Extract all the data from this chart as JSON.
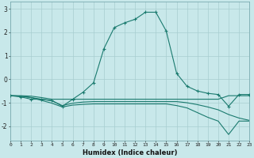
{
  "xlabel": "Humidex (Indice chaleur)",
  "background_color": "#c8e8ea",
  "grid_color": "#a8cdd0",
  "line_color": "#1a7a6e",
  "xlim": [
    0,
    23
  ],
  "ylim": [
    -2.6,
    3.3
  ],
  "xticks": [
    0,
    1,
    2,
    3,
    4,
    5,
    6,
    7,
    8,
    9,
    10,
    11,
    12,
    13,
    14,
    15,
    16,
    17,
    18,
    19,
    20,
    21,
    22,
    23
  ],
  "yticks": [
    -2,
    -1,
    0,
    1,
    2,
    3
  ],
  "line1_x": [
    0,
    1,
    2,
    3,
    4,
    5,
    6,
    7,
    8,
    9,
    10,
    11,
    12,
    13,
    14,
    15,
    16,
    17,
    18,
    19,
    20,
    21,
    22,
    23
  ],
  "line1_y": [
    -0.7,
    -0.75,
    -0.85,
    -0.85,
    -0.9,
    -1.15,
    -0.85,
    -0.55,
    -0.15,
    1.3,
    2.2,
    2.4,
    2.55,
    2.85,
    2.85,
    2.05,
    0.25,
    -0.3,
    -0.5,
    -0.6,
    -0.65,
    -1.15,
    -0.65,
    -0.65
  ],
  "line2_full_x": [
    0,
    1,
    2,
    3,
    4,
    5,
    6,
    7,
    8,
    9,
    10,
    11,
    12,
    13,
    14,
    15,
    16,
    17,
    18,
    19,
    20,
    21,
    22,
    23
  ],
  "line2_full_y": [
    -0.7,
    -0.7,
    -0.72,
    -0.78,
    -0.85,
    -0.85,
    -0.85,
    -0.85,
    -0.85,
    -0.85,
    -0.85,
    -0.85,
    -0.85,
    -0.85,
    -0.85,
    -0.85,
    -0.85,
    -0.85,
    -0.85,
    -0.85,
    -0.85,
    -0.7,
    -0.7,
    -0.7
  ],
  "line3_x": [
    0,
    1,
    2,
    3,
    4,
    5,
    6,
    7,
    8,
    9,
    10,
    11,
    12,
    13,
    14,
    15,
    16,
    17,
    18,
    19,
    20,
    21,
    22,
    23
  ],
  "line3_y": [
    -0.7,
    -0.72,
    -0.78,
    -0.85,
    -0.92,
    -1.12,
    -1.02,
    -0.97,
    -0.95,
    -0.95,
    -0.95,
    -0.95,
    -0.95,
    -0.95,
    -0.95,
    -0.95,
    -0.95,
    -1.0,
    -1.08,
    -1.18,
    -1.3,
    -1.5,
    -1.65,
    -1.75
  ],
  "line4_x": [
    0,
    1,
    2,
    3,
    4,
    5,
    6,
    7,
    8,
    9,
    10,
    11,
    12,
    13,
    14,
    15,
    16,
    17,
    18,
    19,
    20,
    21,
    22,
    23
  ],
  "line4_y": [
    -0.7,
    -0.72,
    -0.78,
    -0.9,
    -1.02,
    -1.18,
    -1.1,
    -1.07,
    -1.05,
    -1.05,
    -1.05,
    -1.05,
    -1.05,
    -1.05,
    -1.05,
    -1.05,
    -1.12,
    -1.22,
    -1.42,
    -1.62,
    -1.78,
    -2.35,
    -1.78,
    -1.78
  ]
}
